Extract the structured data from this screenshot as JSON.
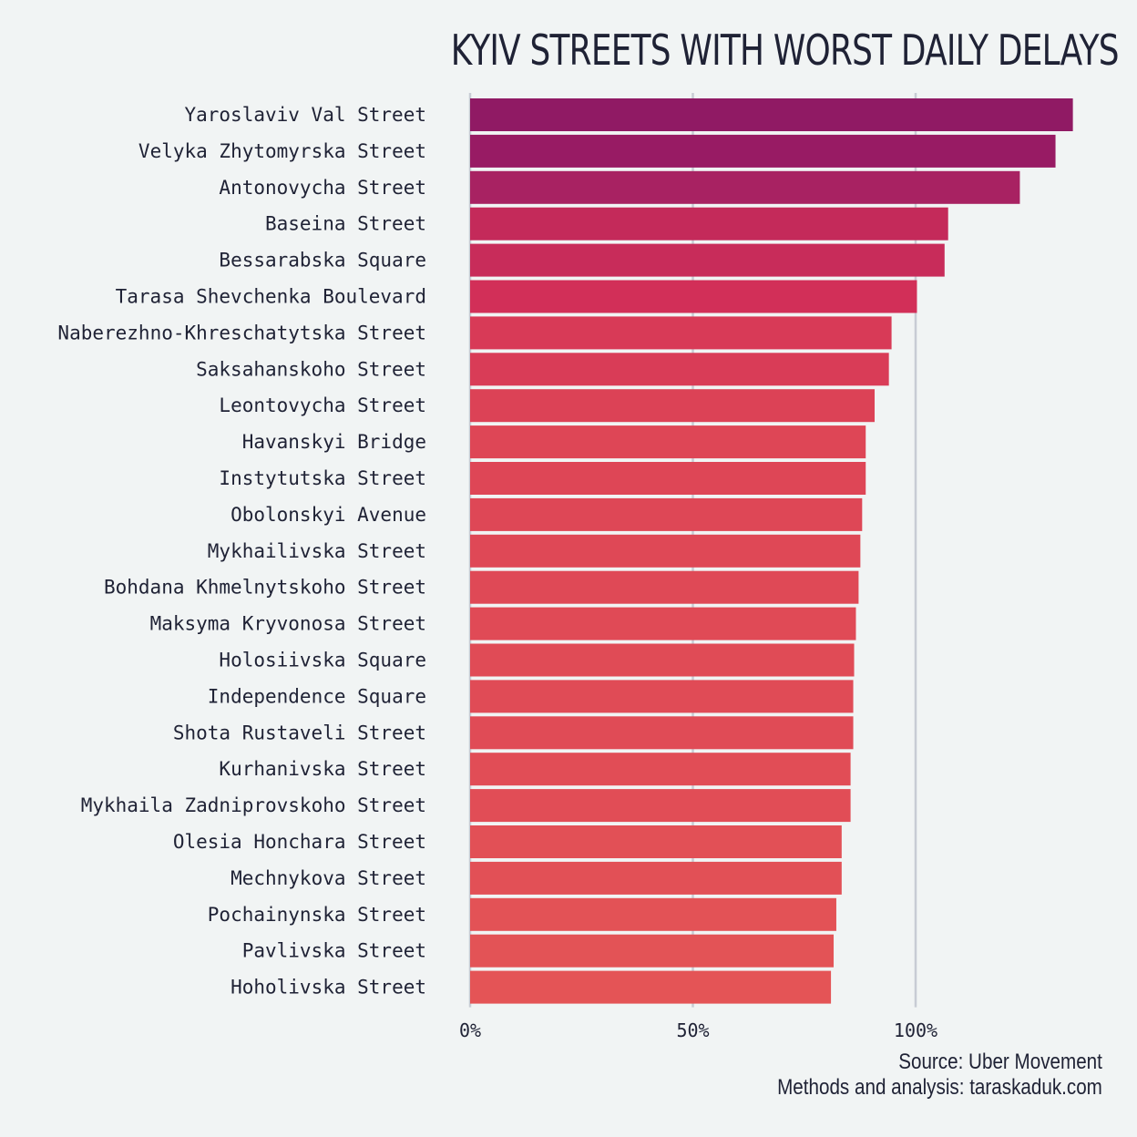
{
  "chart_data": {
    "type": "bar",
    "orientation": "horizontal",
    "title": "KYIV STREETS WITH WORST DAILY DELAYS",
    "xlabel": "",
    "ylabel": "",
    "x_ticks": [
      "0%",
      "50%",
      "100%"
    ],
    "x_tick_values": [
      0,
      50,
      100
    ],
    "xlim": [
      0,
      140
    ],
    "grid": true,
    "categories": [
      "Yaroslaviv Val Street",
      "Velyka Zhytomyrska Street",
      "Antonovycha Street",
      "Baseina Street",
      "Bessarabska Square",
      "Tarasa Shevchenka Boulevard",
      "Naberezhno-Khreschatytska Street",
      "Saksahanskoho Street",
      "Leontovycha Street",
      "Havanskyi Bridge",
      "Instytutska Street",
      "Obolonskyi Avenue",
      "Mykhailivska Street",
      "Bohdana Khmelnytskoho Street",
      "Maksyma Kryvonosa Street",
      "Holosiivska Square",
      "Independence Square",
      "Shota Rustaveli Street",
      "Kurhanivska Street",
      "Mykhaila Zadniprovskoho Street",
      "Olesia Honchara Street",
      "Mechnykova Street",
      "Pochainynska Street",
      "Pavlivska Street",
      "Hoholivska Street"
    ],
    "values": [
      135.3,
      131.4,
      123.4,
      107.3,
      106.5,
      100.3,
      94.6,
      94.0,
      90.8,
      88.8,
      88.8,
      88.0,
      87.6,
      87.2,
      86.6,
      86.2,
      86.0,
      86.0,
      85.4,
      85.4,
      83.4,
      83.4,
      82.2,
      81.6,
      81.0
    ],
    "bar_colors": [
      "#901a64",
      "#981b64",
      "#a82262",
      "#c42a5a",
      "#c82c5a",
      "#d22f58",
      "#d83a57",
      "#d93c57",
      "#dc4256",
      "#de4656",
      "#de4656",
      "#de4756",
      "#df4856",
      "#df4956",
      "#e04a56",
      "#e04b56",
      "#e04b56",
      "#e04b56",
      "#e14d56",
      "#e14d56",
      "#e25056",
      "#e25056",
      "#e35256",
      "#e35356",
      "#e45456"
    ],
    "source": "Source: Uber Movement",
    "credit": "Methods and analysis: taraskaduk.com"
  },
  "colors": {
    "background": "#f1f4f4",
    "text": "#1f2235",
    "grid": "#c8ccd4"
  }
}
